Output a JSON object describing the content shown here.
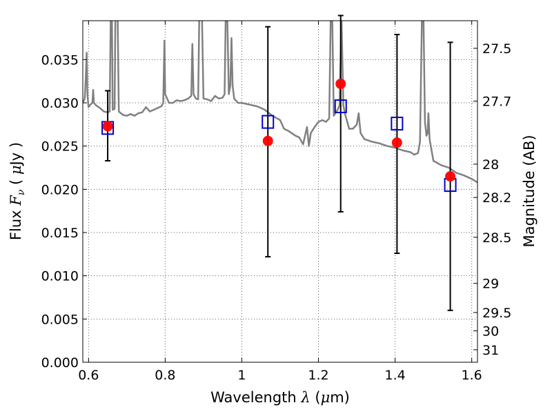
{
  "chart_data": {
    "type": "scatter",
    "xlabel": {
      "pre": "Wavelength ",
      "sym": "λ",
      "post": " (",
      "mu": "μ",
      "unit": "m)"
    },
    "ylabel": {
      "pre": "Flux ",
      "sym": "F",
      "sub": "ν",
      "mid": " ( ",
      "mu": "μ",
      "unit": "Jy )"
    },
    "y2label": "Magnitude (AB)",
    "xlim": [
      0.585,
      1.615
    ],
    "ylim": [
      0.0,
      0.0395
    ],
    "grid": true,
    "x_ticks": [
      {
        "value": 0.6,
        "label": "0.6"
      },
      {
        "value": 0.8,
        "label": "0.8"
      },
      {
        "value": 1.0,
        "label": "1"
      },
      {
        "value": 1.2,
        "label": "1.2"
      },
      {
        "value": 1.4,
        "label": "1.4"
      },
      {
        "value": 1.6,
        "label": "1.6"
      }
    ],
    "y_ticks": [
      {
        "value": 0.0,
        "label": "0.000"
      },
      {
        "value": 0.005,
        "label": "0.005"
      },
      {
        "value": 0.01,
        "label": "0.010"
      },
      {
        "value": 0.015,
        "label": "0.015"
      },
      {
        "value": 0.02,
        "label": "0.020"
      },
      {
        "value": 0.025,
        "label": "0.025"
      },
      {
        "value": 0.03,
        "label": "0.030"
      },
      {
        "value": 0.035,
        "label": "0.035"
      }
    ],
    "mag_ticks": [
      {
        "mag": 27.5,
        "label": "27.5"
      },
      {
        "mag": 27.7,
        "label": "27.7"
      },
      {
        "mag": 28.0,
        "label": "28"
      },
      {
        "mag": 28.2,
        "label": "28.2"
      },
      {
        "mag": 28.5,
        "label": "28.5"
      },
      {
        "mag": 29.0,
        "label": "29"
      },
      {
        "mag": 29.5,
        "label": "29.5"
      },
      {
        "mag": 30.0,
        "label": "30"
      },
      {
        "mag": 31.0,
        "label": "31"
      }
    ],
    "observed": [
      {
        "x": 0.65,
        "y": 0.0273,
        "yerr_low": 0.0233,
        "yerr_high": 0.0314
      },
      {
        "x": 1.068,
        "y": 0.0256,
        "yerr_low": 0.0122,
        "yerr_high": 0.0388
      },
      {
        "x": 1.258,
        "y": 0.0322,
        "yerr_low": 0.0174,
        "yerr_high": 0.0401
      },
      {
        "x": 1.405,
        "y": 0.0254,
        "yerr_low": 0.0126,
        "yerr_high": 0.0379
      },
      {
        "x": 1.544,
        "y": 0.0215,
        "yerr_low": 0.006,
        "yerr_high": 0.037
      }
    ],
    "model_bandpass": [
      {
        "x": 0.65,
        "y": 0.0271
      },
      {
        "x": 1.068,
        "y": 0.0278
      },
      {
        "x": 1.258,
        "y": 0.0296
      },
      {
        "x": 1.405,
        "y": 0.0276
      },
      {
        "x": 1.544,
        "y": 0.0205
      }
    ],
    "sed_spectrum": [
      [
        0.585,
        0.03
      ],
      [
        0.59,
        0.0305
      ],
      [
        0.593,
        0.033
      ],
      [
        0.595,
        0.0358
      ],
      [
        0.597,
        0.031
      ],
      [
        0.6,
        0.0295
      ],
      [
        0.605,
        0.0298
      ],
      [
        0.61,
        0.03
      ],
      [
        0.612,
        0.0315
      ],
      [
        0.614,
        0.03
      ],
      [
        0.62,
        0.0297
      ],
      [
        0.63,
        0.0294
      ],
      [
        0.64,
        0.029
      ],
      [
        0.65,
        0.0289
      ],
      [
        0.655,
        0.029
      ],
      [
        0.658,
        0.04
      ],
      [
        0.661,
        0.04
      ],
      [
        0.663,
        0.0292
      ],
      [
        0.668,
        0.0293
      ],
      [
        0.67,
        0.04
      ],
      [
        0.673,
        0.04
      ],
      [
        0.676,
        0.04
      ],
      [
        0.679,
        0.029
      ],
      [
        0.69,
        0.0286
      ],
      [
        0.7,
        0.0285
      ],
      [
        0.71,
        0.0287
      ],
      [
        0.72,
        0.0285
      ],
      [
        0.73,
        0.0288
      ],
      [
        0.74,
        0.0289
      ],
      [
        0.75,
        0.0295
      ],
      [
        0.76,
        0.029
      ],
      [
        0.77,
        0.0292
      ],
      [
        0.78,
        0.0294
      ],
      [
        0.79,
        0.0296
      ],
      [
        0.795,
        0.03
      ],
      [
        0.798,
        0.0372
      ],
      [
        0.8,
        0.031
      ],
      [
        0.81,
        0.03
      ],
      [
        0.82,
        0.03
      ],
      [
        0.83,
        0.0303
      ],
      [
        0.84,
        0.0302
      ],
      [
        0.85,
        0.0303
      ],
      [
        0.86,
        0.0305
      ],
      [
        0.868,
        0.0308
      ],
      [
        0.871,
        0.0368
      ],
      [
        0.874,
        0.031
      ],
      [
        0.88,
        0.0305
      ],
      [
        0.886,
        0.0304
      ],
      [
        0.889,
        0.04
      ],
      [
        0.893,
        0.04
      ],
      [
        0.896,
        0.04
      ],
      [
        0.9,
        0.0305
      ],
      [
        0.91,
        0.0304
      ],
      [
        0.92,
        0.0302
      ],
      [
        0.93,
        0.0308
      ],
      [
        0.94,
        0.0305
      ],
      [
        0.95,
        0.0306
      ],
      [
        0.955,
        0.031
      ],
      [
        0.958,
        0.04
      ],
      [
        0.962,
        0.04
      ],
      [
        0.966,
        0.031
      ],
      [
        0.97,
        0.032
      ],
      [
        0.973,
        0.0375
      ],
      [
        0.976,
        0.032
      ],
      [
        0.98,
        0.0305
      ],
      [
        0.99,
        0.03
      ],
      [
        1.0,
        0.03
      ],
      [
        1.02,
        0.0298
      ],
      [
        1.04,
        0.0296
      ],
      [
        1.06,
        0.0292
      ],
      [
        1.08,
        0.0285
      ],
      [
        1.1,
        0.028
      ],
      [
        1.11,
        0.027
      ],
      [
        1.12,
        0.0268
      ],
      [
        1.13,
        0.0265
      ],
      [
        1.14,
        0.0262
      ],
      [
        1.15,
        0.026
      ],
      [
        1.16,
        0.0252
      ],
      [
        1.17,
        0.0272
      ],
      [
        1.175,
        0.025
      ],
      [
        1.18,
        0.0265
      ],
      [
        1.19,
        0.0272
      ],
      [
        1.2,
        0.0278
      ],
      [
        1.21,
        0.028
      ],
      [
        1.22,
        0.0278
      ],
      [
        1.228,
        0.0282
      ],
      [
        1.232,
        0.04
      ],
      [
        1.236,
        0.04
      ],
      [
        1.24,
        0.0285
      ],
      [
        1.25,
        0.0292
      ],
      [
        1.255,
        0.0297
      ],
      [
        1.26,
        0.04
      ],
      [
        1.265,
        0.0297
      ],
      [
        1.27,
        0.0286
      ],
      [
        1.28,
        0.027
      ],
      [
        1.29,
        0.027
      ],
      [
        1.3,
        0.0275
      ],
      [
        1.305,
        0.0288
      ],
      [
        1.31,
        0.0265
      ],
      [
        1.32,
        0.0258
      ],
      [
        1.34,
        0.0255
      ],
      [
        1.36,
        0.0253
      ],
      [
        1.38,
        0.025
      ],
      [
        1.4,
        0.0248
      ],
      [
        1.42,
        0.0245
      ],
      [
        1.44,
        0.0243
      ],
      [
        1.45,
        0.024
      ],
      [
        1.46,
        0.0242
      ],
      [
        1.465,
        0.0255
      ],
      [
        1.47,
        0.04
      ],
      [
        1.474,
        0.04
      ],
      [
        1.478,
        0.0278
      ],
      [
        1.482,
        0.0262
      ],
      [
        1.485,
        0.0265
      ],
      [
        1.487,
        0.0288
      ],
      [
        1.49,
        0.0258
      ],
      [
        1.5,
        0.0233
      ],
      [
        1.52,
        0.0228
      ],
      [
        1.54,
        0.0225
      ],
      [
        1.56,
        0.0219
      ],
      [
        1.58,
        0.0216
      ],
      [
        1.6,
        0.0212
      ],
      [
        1.615,
        0.0208
      ]
    ],
    "colors": {
      "spectrum": "#808080",
      "observed": "#ff0000",
      "model": "#0000cc",
      "errorbar": "#000000",
      "grid": "#555555"
    }
  }
}
